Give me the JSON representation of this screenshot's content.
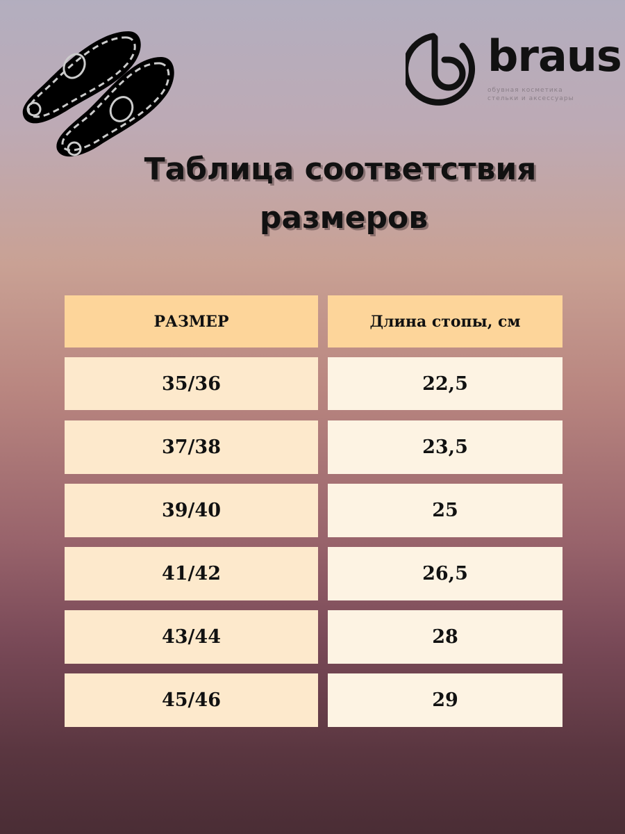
{
  "logo": {
    "brand": "braus",
    "tagline_line1": "обувная косметика",
    "tagline_line2": "стельки и аксессуары"
  },
  "title": {
    "line1": "Таблица соответствия",
    "line2": "размеров"
  },
  "table": {
    "headers": [
      "РАЗМЕР",
      "Длина стопы, см"
    ],
    "rows": [
      [
        "35/36",
        "22,5"
      ],
      [
        "37/38",
        "23,5"
      ],
      [
        "39/40",
        "25"
      ],
      [
        "41/42",
        "26,5"
      ],
      [
        "43/44",
        "28"
      ],
      [
        "45/46",
        "29"
      ]
    ]
  },
  "colors": {
    "header": "#fdd59a",
    "size_cell": "#fde9cc",
    "length_cell": "#fdf3e3"
  }
}
